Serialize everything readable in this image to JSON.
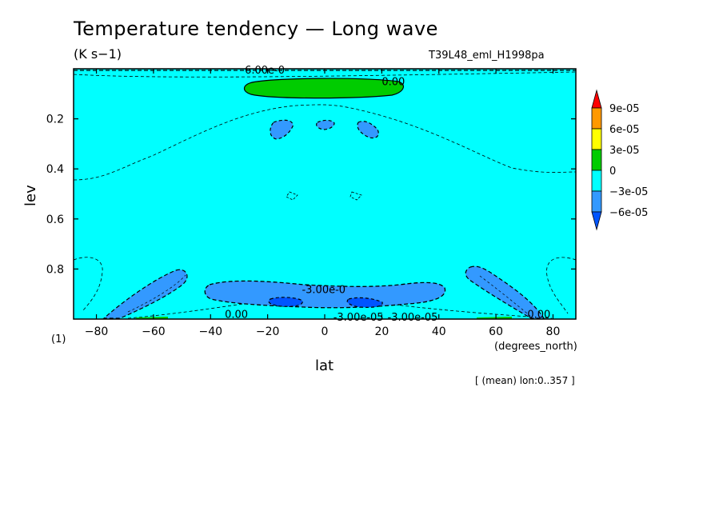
{
  "chart_data": {
    "type": "contour",
    "title": "Temperature tendency — Long wave",
    "units": "(K s−1)",
    "run_label": "T39L48_eml_H1998pa",
    "xlabel": "lat",
    "xunits": "(degrees_north)",
    "ylabel": "lev",
    "yunits": "(1)",
    "footnote": "[ (mean) lon:0..357 ]",
    "xlim": [
      -88,
      88
    ],
    "ylim": [
      0.0,
      1.0
    ],
    "y_inverted": true,
    "x_ticks": [
      -80,
      -60,
      -40,
      -20,
      0,
      20,
      40,
      60,
      80
    ],
    "y_ticks": [
      0.2,
      0.4,
      0.6,
      0.8
    ],
    "colorbar": {
      "levels": [
        "9e-05",
        "6e-05",
        "3e-05",
        "0",
        "-3e-05",
        "-6e-05"
      ],
      "colors": [
        "#ff0000",
        "#ff9900",
        "#ffff00",
        "#00cc00",
        "#00ffff",
        "#3399ff",
        "#0055ff"
      ]
    },
    "background_fill_color": "#00ffff",
    "contour_labels": [
      {
        "text": "6.00e-0",
        "lat": -28,
        "lev": 0.0
      },
      {
        "text": "0.00",
        "lat": 20,
        "lev": 0.05
      },
      {
        "text": "-3.00e-0",
        "lat": -8,
        "lev": 0.88
      },
      {
        "text": "0.00",
        "lat": -35,
        "lev": 0.98
      },
      {
        "text": "-3.00e-05",
        "lat": 3,
        "lev": 1.0
      },
      {
        "text": "-3.00e-05",
        "lat": 22,
        "lev": 1.0
      },
      {
        "text": "0.00",
        "lat": 71,
        "lev": 0.98
      }
    ],
    "regions": [
      {
        "level": "0 to 3e-05",
        "color": "#00cc00",
        "description": "upper band",
        "lat_range": [
          -27,
          28
        ],
        "lev_range": [
          0.03,
          0.1
        ]
      },
      {
        "level": "-6e-05 to -3e-05",
        "color": "#3399ff",
        "lat_range": [
          -18,
          -10
        ],
        "lev_range": [
          0.2,
          0.27
        ]
      },
      {
        "level": "-6e-05 to -3e-05",
        "color": "#3399ff",
        "lat_range": [
          -3,
          4
        ],
        "lev_range": [
          0.2,
          0.23
        ]
      },
      {
        "level": "-6e-05 to -3e-05",
        "color": "#3399ff",
        "lat_range": [
          11,
          19
        ],
        "lev_range": [
          0.2,
          0.27
        ]
      },
      {
        "level": "-6e-05 to -3e-05",
        "color": "#3399ff",
        "lat_range": [
          -40,
          40
        ],
        "lev_range": [
          0.84,
          0.95
        ]
      },
      {
        "level": "-6e-05 to -3e-05",
        "color": "#3399ff",
        "lat_range": [
          -78,
          -48
        ],
        "lev_range": [
          0.8,
          1.0
        ]
      },
      {
        "level": "-6e-05 to -3e-05",
        "color": "#3399ff",
        "lat_range": [
          48,
          77
        ],
        "lev_range": [
          0.8,
          1.0
        ]
      },
      {
        "level": "< -6e-05",
        "color": "#0055ff",
        "lat_range": [
          -17,
          -7
        ],
        "lev_range": [
          0.92,
          0.96
        ]
      },
      {
        "level": "< -6e-05",
        "color": "#0055ff",
        "lat_range": [
          9,
          19
        ],
        "lev_range": [
          0.92,
          0.96
        ]
      }
    ]
  }
}
